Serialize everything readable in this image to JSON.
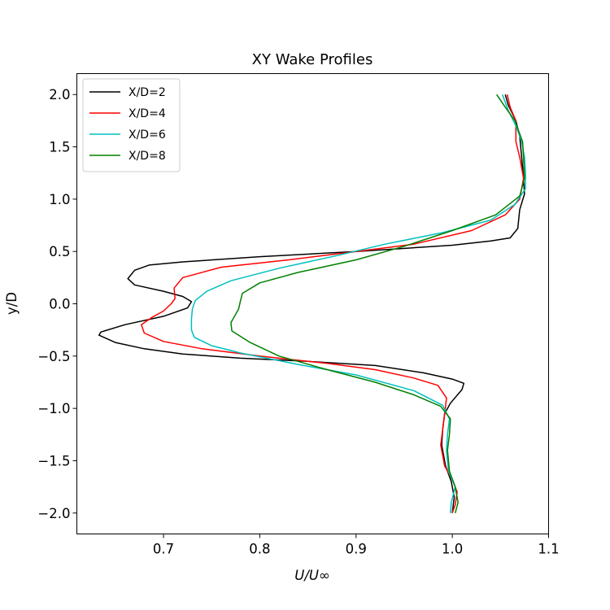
{
  "chart_data": {
    "type": "line",
    "title": "XY Wake Profiles",
    "xlabel": "U/U∞",
    "ylabel": "y/D",
    "xlim": [
      0.61,
      1.1
    ],
    "ylim": [
      -2.2,
      2.2
    ],
    "xticks": [
      0.7,
      0.8,
      0.9,
      1.0,
      1.1
    ],
    "xtick_labels": [
      "0.7",
      "0.8",
      "0.9",
      "1.0",
      "1.1"
    ],
    "yticks": [
      2.0,
      1.5,
      1.0,
      0.5,
      0.0,
      -0.5,
      -1.0,
      -1.5,
      -2.0
    ],
    "ytick_labels": [
      "2.0",
      "1.5",
      "1.0",
      "0.5",
      "0.0",
      "−0.5",
      "−1.0",
      "−1.5",
      "−2.0"
    ],
    "grid": false,
    "legend_position": "top-left",
    "series": [
      {
        "name": "X/D=2",
        "color": "#000000",
        "points": [
          [
            1.055,
            2.0
          ],
          [
            1.058,
            1.9
          ],
          [
            1.066,
            1.75
          ],
          [
            1.07,
            1.6
          ],
          [
            1.072,
            1.4
          ],
          [
            1.074,
            1.2
          ],
          [
            1.075,
            1.05
          ],
          [
            1.07,
            0.9
          ],
          [
            1.068,
            0.72
          ],
          [
            1.06,
            0.63
          ],
          [
            1.04,
            0.6
          ],
          [
            1.0,
            0.56
          ],
          [
            0.9,
            0.5
          ],
          [
            0.8,
            0.45
          ],
          [
            0.72,
            0.4
          ],
          [
            0.685,
            0.37
          ],
          [
            0.67,
            0.32
          ],
          [
            0.663,
            0.24
          ],
          [
            0.67,
            0.18
          ],
          [
            0.7,
            0.12
          ],
          [
            0.72,
            0.07
          ],
          [
            0.729,
            0.02
          ],
          [
            0.725,
            -0.04
          ],
          [
            0.7,
            -0.12
          ],
          [
            0.66,
            -0.2
          ],
          [
            0.635,
            -0.27
          ],
          [
            0.633,
            -0.3
          ],
          [
            0.65,
            -0.37
          ],
          [
            0.68,
            -0.43
          ],
          [
            0.72,
            -0.48
          ],
          [
            0.78,
            -0.52
          ],
          [
            0.85,
            -0.55
          ],
          [
            0.92,
            -0.59
          ],
          [
            0.97,
            -0.66
          ],
          [
            1.0,
            -0.72
          ],
          [
            1.012,
            -0.76
          ],
          [
            1.01,
            -0.82
          ],
          [
            0.998,
            -0.95
          ],
          [
            0.992,
            -1.05
          ],
          [
            0.99,
            -1.2
          ],
          [
            0.989,
            -1.35
          ],
          [
            0.993,
            -1.55
          ],
          [
            0.999,
            -1.7
          ],
          [
            1.002,
            -1.85
          ],
          [
            1.0,
            -2.0
          ]
        ]
      },
      {
        "name": "X/D=4",
        "color": "#ff0000",
        "points": [
          [
            1.057,
            2.0
          ],
          [
            1.06,
            1.88
          ],
          [
            1.066,
            1.75
          ],
          [
            1.066,
            1.55
          ],
          [
            1.07,
            1.4
          ],
          [
            1.074,
            1.2
          ],
          [
            1.07,
            1.0
          ],
          [
            1.055,
            0.85
          ],
          [
            1.02,
            0.7
          ],
          [
            0.96,
            0.57
          ],
          [
            0.9,
            0.5
          ],
          [
            0.83,
            0.42
          ],
          [
            0.76,
            0.35
          ],
          [
            0.72,
            0.25
          ],
          [
            0.711,
            0.15
          ],
          [
            0.712,
            0.05
          ],
          [
            0.708,
            0.0
          ],
          [
            0.7,
            -0.07
          ],
          [
            0.688,
            -0.13
          ],
          [
            0.677,
            -0.2
          ],
          [
            0.68,
            -0.28
          ],
          [
            0.7,
            -0.36
          ],
          [
            0.74,
            -0.43
          ],
          [
            0.8,
            -0.5
          ],
          [
            0.87,
            -0.57
          ],
          [
            0.92,
            -0.63
          ],
          [
            0.96,
            -0.71
          ],
          [
            0.985,
            -0.78
          ],
          [
            0.994,
            -0.9
          ],
          [
            0.992,
            -1.05
          ],
          [
            0.99,
            -1.2
          ],
          [
            0.988,
            -1.35
          ],
          [
            0.992,
            -1.55
          ],
          [
            1.0,
            -1.68
          ],
          [
            1.005,
            -1.8
          ],
          [
            1.003,
            -1.92
          ],
          [
            1.0,
            -2.0
          ]
        ]
      },
      {
        "name": "X/D=6",
        "color": "#00bfbf",
        "points": [
          [
            1.052,
            2.0
          ],
          [
            1.058,
            1.85
          ],
          [
            1.066,
            1.7
          ],
          [
            1.072,
            1.55
          ],
          [
            1.075,
            1.4
          ],
          [
            1.076,
            1.25
          ],
          [
            1.076,
            1.1
          ],
          [
            1.065,
            0.95
          ],
          [
            1.04,
            0.8
          ],
          [
            0.99,
            0.68
          ],
          [
            0.93,
            0.57
          ],
          [
            0.88,
            0.46
          ],
          [
            0.82,
            0.34
          ],
          [
            0.77,
            0.22
          ],
          [
            0.745,
            0.12
          ],
          [
            0.733,
            0.03
          ],
          [
            0.73,
            -0.05
          ],
          [
            0.729,
            -0.15
          ],
          [
            0.729,
            -0.25
          ],
          [
            0.732,
            -0.32
          ],
          [
            0.75,
            -0.4
          ],
          [
            0.78,
            -0.47
          ],
          [
            0.84,
            -0.58
          ],
          [
            0.9,
            -0.68
          ],
          [
            0.96,
            -0.83
          ],
          [
            0.99,
            -0.97
          ],
          [
            0.997,
            -1.1
          ],
          [
            0.995,
            -1.25
          ],
          [
            0.994,
            -1.4
          ],
          [
            0.996,
            -1.6
          ],
          [
            1.003,
            -1.75
          ],
          [
            0.999,
            -1.9
          ],
          [
            0.998,
            -2.0
          ]
        ]
      },
      {
        "name": "X/D=8",
        "color": "#008000",
        "points": [
          [
            1.046,
            2.0
          ],
          [
            1.055,
            1.88
          ],
          [
            1.065,
            1.75
          ],
          [
            1.073,
            1.55
          ],
          [
            1.074,
            1.4
          ],
          [
            1.075,
            1.2
          ],
          [
            1.07,
            1.03
          ],
          [
            1.045,
            0.85
          ],
          [
            1.0,
            0.7
          ],
          [
            0.95,
            0.55
          ],
          [
            0.9,
            0.42
          ],
          [
            0.84,
            0.3
          ],
          [
            0.8,
            0.2
          ],
          [
            0.782,
            0.1
          ],
          [
            0.78,
            0.03
          ],
          [
            0.778,
            -0.05
          ],
          [
            0.77,
            -0.18
          ],
          [
            0.771,
            -0.26
          ],
          [
            0.79,
            -0.37
          ],
          [
            0.82,
            -0.5
          ],
          [
            0.87,
            -0.63
          ],
          [
            0.92,
            -0.75
          ],
          [
            0.96,
            -0.87
          ],
          [
            0.988,
            -0.98
          ],
          [
            0.998,
            -1.1
          ],
          [
            0.997,
            -1.25
          ],
          [
            0.995,
            -1.4
          ],
          [
            0.997,
            -1.6
          ],
          [
            1.003,
            -1.75
          ],
          [
            1.006,
            -1.9
          ],
          [
            1.003,
            -2.0
          ]
        ]
      }
    ]
  }
}
